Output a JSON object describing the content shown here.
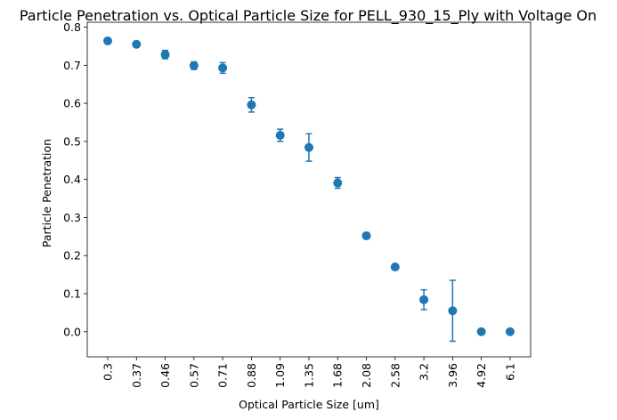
{
  "chart_data": {
    "type": "scatter",
    "title": "Particle Penetration vs. Optical Particle Size for PELL_930_15_Ply with Voltage On",
    "xlabel": "Optical Particle Size [um]",
    "ylabel": "Particle Penetration",
    "categories": [
      "0.3",
      "0.37",
      "0.46",
      "0.57",
      "0.71",
      "0.88",
      "1.09",
      "1.35",
      "1.68",
      "2.08",
      "2.58",
      "3.2",
      "3.96",
      "4.92",
      "6.1"
    ],
    "values": [
      0.764,
      0.755,
      0.728,
      0.699,
      0.693,
      0.596,
      0.516,
      0.484,
      0.391,
      0.252,
      0.17,
      0.084,
      0.055,
      0.0,
      0.0
    ],
    "errors": [
      0.004,
      0.004,
      0.011,
      0.01,
      0.014,
      0.019,
      0.016,
      0.036,
      0.014,
      0.008,
      0.005,
      0.026,
      0.08,
      0.0,
      0.0
    ],
    "ylim": [
      -0.066,
      0.813
    ],
    "yticks": [
      "0.0",
      "0.1",
      "0.2",
      "0.3",
      "0.4",
      "0.5",
      "0.6",
      "0.7",
      "0.8"
    ],
    "ytick_values": [
      0.0,
      0.1,
      0.2,
      0.3,
      0.4,
      0.5,
      0.6,
      0.7,
      0.8
    ],
    "grid": false,
    "color": "#1f77b4"
  }
}
